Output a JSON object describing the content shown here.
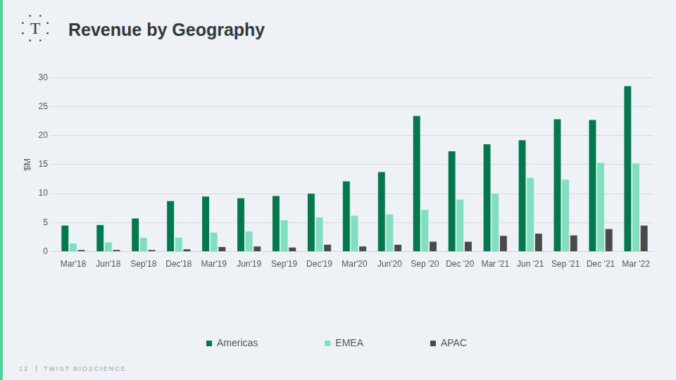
{
  "logo": "T",
  "page_number": "12",
  "footer": "TWIST BIOSCIENCE",
  "chart_data": {
    "type": "bar",
    "title": "Revenue by Geography",
    "y_label": "$M",
    "categories": [
      "Mar'18",
      "Jun'18",
      "Sep'18",
      "Dec'18",
      "Mar'19",
      "Jun'19",
      "Sep'19",
      "Dec'19",
      "Mar'20",
      "Jun'20",
      "Sep '20",
      "Dec '20",
      "Mar '21",
      "Jun '21",
      "Sep '21",
      "Dec '21",
      "Mar '22"
    ],
    "series": [
      {
        "name": "Americas",
        "color": "#007a4d",
        "values": [
          4.5,
          4.6,
          5.7,
          8.7,
          9.5,
          9.2,
          9.6,
          10.0,
          12.1,
          13.7,
          23.4,
          17.3,
          18.5,
          19.2,
          22.8,
          22.7,
          28.5
        ]
      },
      {
        "name": "EMEA",
        "color": "#7fe0c0",
        "values": [
          1.4,
          1.6,
          2.4,
          2.4,
          3.3,
          3.5,
          5.4,
          5.9,
          6.2,
          6.4,
          7.2,
          9.0,
          10.0,
          12.7,
          12.4,
          15.3,
          15.2
        ]
      },
      {
        "name": "APAC",
        "color": "#4a4a4a",
        "values": [
          0.3,
          0.3,
          0.3,
          0.4,
          0.8,
          0.9,
          0.7,
          1.2,
          0.9,
          1.2,
          1.7,
          1.7,
          2.7,
          3.1,
          2.8,
          3.9,
          4.5
        ]
      }
    ],
    "ylim": [
      0,
      30
    ],
    "yticks": [
      0,
      5,
      10,
      15,
      20,
      25,
      30
    ],
    "grid": true,
    "legend": "bottom"
  }
}
